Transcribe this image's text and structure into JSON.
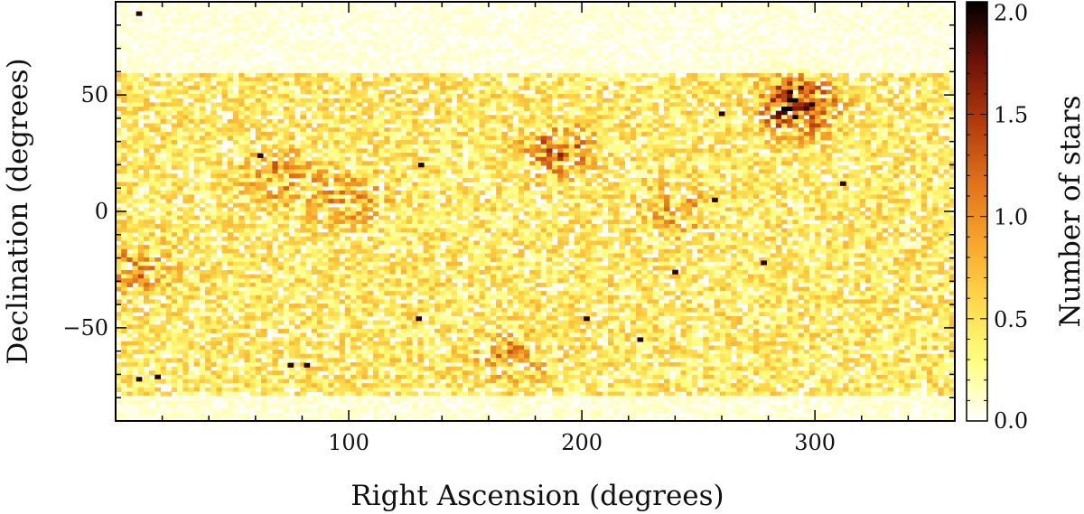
{
  "chart_data": {
    "type": "heatmap",
    "title": "",
    "xlabel": "Right Ascension (degrees)",
    "ylabel": "Declination (degrees)",
    "colorbar_label": "Number of stars",
    "xlim": [
      0,
      360
    ],
    "ylim": [
      -90,
      90
    ],
    "x_ticks": [
      100,
      200,
      300
    ],
    "y_ticks": [
      50,
      0,
      -50
    ],
    "y_tick_labels": [
      "50",
      "0",
      "−50"
    ],
    "colorbar_range": [
      0.0,
      2.05
    ],
    "colorbar_ticks": [
      0.0,
      0.5,
      1.0,
      1.5,
      2.0
    ],
    "colorbar_tick_labels": [
      "0.0",
      "0.5",
      "1.0",
      "1.5",
      "2.0"
    ],
    "bins": {
      "ra_count": 150,
      "dec_count": 100
    },
    "colormap": [
      "#ffffff",
      "#ffff80",
      "#ffd84a",
      "#f7a52a",
      "#e0701a",
      "#b23a0c",
      "#6e1207",
      "#000000"
    ],
    "density_model": {
      "base": 0.42,
      "mean_by_dec_band": [
        {
          "dec_range": [
            60,
            90
          ],
          "mean": 0.08
        },
        {
          "dec_range": [
            -80,
            60
          ],
          "mean": 0.45
        },
        {
          "dec_range": [
            -90,
            -80
          ],
          "mean": 0.1
        }
      ],
      "overdensities": [
        {
          "ra": 292,
          "dec": 45,
          "peak": 1.15
        },
        {
          "ra": 190,
          "dec": 26,
          "peak": 0.55
        },
        {
          "ra": 70,
          "dec": 15,
          "peak": 0.45
        },
        {
          "ra": 100,
          "dec": 5,
          "peak": 0.4
        },
        {
          "ra": 8,
          "dec": -25,
          "peak": 0.4
        },
        {
          "ra": 170,
          "dec": -62,
          "peak": 0.35
        },
        {
          "ra": 240,
          "dec": 0,
          "peak": 0.3
        }
      ],
      "isolated_max_pixels": [
        {
          "ra": 10,
          "dec": -72
        },
        {
          "ra": 18,
          "dec": -71
        },
        {
          "ra": 75,
          "dec": -66
        },
        {
          "ra": 82,
          "dec": -66
        },
        {
          "ra": 130,
          "dec": -46
        },
        {
          "ra": 202,
          "dec": -46
        },
        {
          "ra": 260,
          "dec": 42
        },
        {
          "ra": 278,
          "dec": -22
        },
        {
          "ra": 62,
          "dec": 24
        },
        {
          "ra": 131,
          "dec": 20
        },
        {
          "ra": 257,
          "dec": 5
        },
        {
          "ra": 312,
          "dec": 12
        },
        {
          "ra": 10,
          "dec": 85
        },
        {
          "ra": 240,
          "dec": -26
        },
        {
          "ra": 225,
          "dec": -55
        }
      ]
    }
  }
}
